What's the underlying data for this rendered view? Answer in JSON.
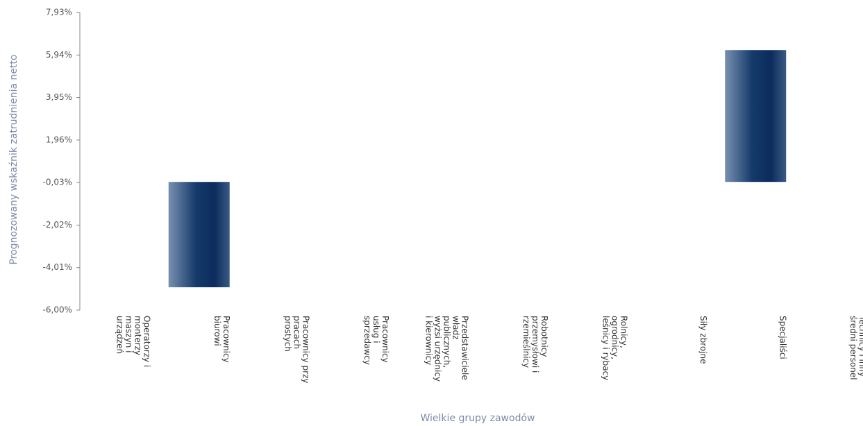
{
  "chart_data": {
    "type": "bar",
    "x_label": "Wielkie grupy zawodów",
    "y_label": "Prognozowany wskaźnik zatrudnienia netto",
    "categories": [
      "Operatorzy i monterzy maszyn i urządzeń",
      "Pracownicy biurowi",
      "Pracownicy przy pracach prostych",
      "Pracownicy usług i sprzedawcy",
      "Przedstawiciele władz publicznych, wyżsi urzędnicy i kierownicy",
      "Robotnicy przemysłowi i rzemieślnicy",
      "Rolnicy, ogrodnicy, leśnicy i rybacy",
      "Siły zbrojne",
      "Specjaliści",
      "Technicy i inny średni personel"
    ],
    "values": [
      0,
      -4.93,
      0,
      0,
      0,
      0,
      0,
      0,
      6.17,
      0
    ],
    "color": "#1f3e6b",
    "ylim": [
      -6.0,
      7.93
    ],
    "yticks": [
      {
        "value": -6.0,
        "label": "-6,00%"
      },
      {
        "value": -4.01,
        "label": "-4,01%"
      },
      {
        "value": -2.02,
        "label": "-2,02%"
      },
      {
        "value": -0.03,
        "label": "-0,03%"
      },
      {
        "value": 1.96,
        "label": "1,96%"
      },
      {
        "value": 3.95,
        "label": "3,95%"
      },
      {
        "value": 5.94,
        "label": "5,94%"
      },
      {
        "value": 7.93,
        "label": "7,93%"
      }
    ]
  }
}
